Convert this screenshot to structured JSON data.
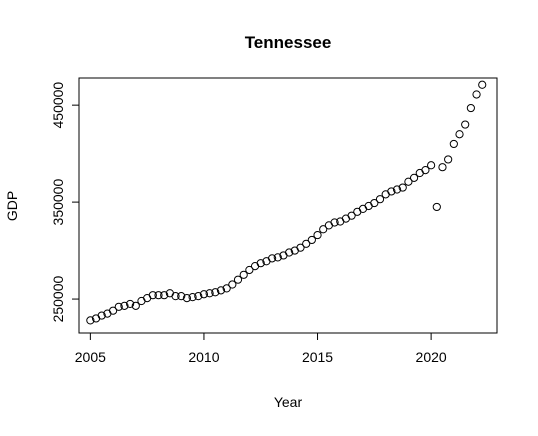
{
  "chart_data": {
    "type": "scatter",
    "title": "Tennessee",
    "xlabel": "Year",
    "ylabel": "GDP",
    "xlim": [
      2004.5,
      2022.9
    ],
    "ylim": [
      215000,
      478000
    ],
    "x_ticks": [
      2005,
      2010,
      2015,
      2020
    ],
    "y_ticks": [
      250000,
      350000,
      450000
    ],
    "x_tick_labels": [
      "2005",
      "2010",
      "2015",
      "2020"
    ],
    "y_tick_labels": [
      "250000",
      "350000",
      "450000"
    ],
    "grid": false,
    "legend": "none",
    "marker": "open-circle",
    "colors": {
      "marker_stroke": "#000000",
      "axis": "#000000",
      "background": "#ffffff"
    },
    "series": [
      {
        "x": [
          2005.0,
          2005.25,
          2005.5,
          2005.75,
          2006.0,
          2006.25,
          2006.5,
          2006.75,
          2007.0,
          2007.25,
          2007.5,
          2007.75,
          2008.0,
          2008.25,
          2008.5,
          2008.75,
          2009.0,
          2009.25,
          2009.5,
          2009.75,
          2010.0,
          2010.25,
          2010.5,
          2010.75,
          2011.0,
          2011.25,
          2011.5,
          2011.75,
          2012.0,
          2012.25,
          2012.5,
          2012.75,
          2013.0,
          2013.25,
          2013.5,
          2013.75,
          2014.0,
          2014.25,
          2014.5,
          2014.75,
          2015.0,
          2015.25,
          2015.5,
          2015.75,
          2016.0,
          2016.25,
          2016.5,
          2016.75,
          2017.0,
          2017.25,
          2017.5,
          2017.75,
          2018.0,
          2018.25,
          2018.5,
          2018.75,
          2019.0,
          2019.25,
          2019.5,
          2019.75,
          2020.0,
          2020.25,
          2020.5,
          2020.75,
          2021.0,
          2021.25,
          2021.5,
          2021.75,
          2022.0,
          2022.25
        ],
        "y": [
          228000,
          230000,
          233000,
          235000,
          238000,
          242000,
          243000,
          245000,
          243000,
          248000,
          251000,
          254000,
          254000,
          254000,
          256000,
          253000,
          253000,
          251000,
          252000,
          253000,
          255000,
          256000,
          257000,
          259000,
          261000,
          265000,
          270000,
          275000,
          280000,
          284000,
          287000,
          289000,
          292000,
          293000,
          295000,
          298000,
          300000,
          303000,
          307000,
          311000,
          316000,
          322000,
          326000,
          329000,
          330000,
          333000,
          336000,
          340000,
          343000,
          346000,
          349000,
          353000,
          358000,
          361000,
          363000,
          365000,
          371000,
          375000,
          380000,
          383000,
          388000,
          345000,
          386000,
          394000,
          410000,
          420000,
          430000,
          447000,
          461000,
          471000
        ]
      }
    ]
  }
}
